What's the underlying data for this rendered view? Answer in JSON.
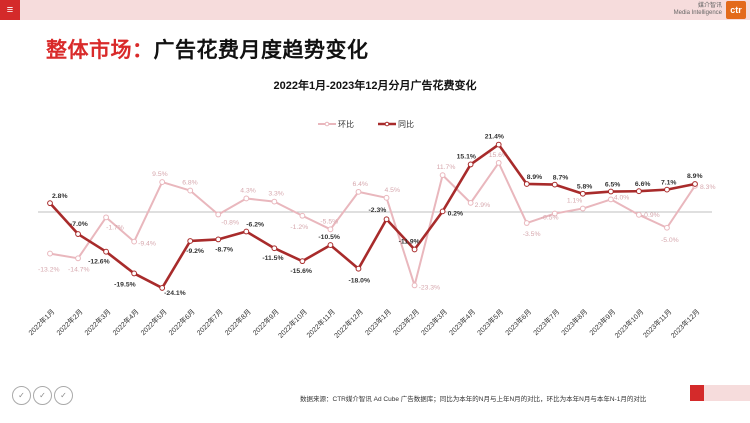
{
  "header": {
    "menu_icon": "≡",
    "brand_cn": "媒介智讯",
    "brand_en": "Media Intelligence",
    "logo_text": "ctr"
  },
  "page": {
    "title_red": "整体市场：",
    "title_black": "广告花费月度趋势变化"
  },
  "chart_data": {
    "type": "line",
    "title": "2022年1月-2023年12月分月广告花费变化",
    "xlabel": "",
    "ylabel": "",
    "legend_position": "top",
    "grid": false,
    "categories": [
      "2022年1月",
      "2022年2月",
      "2022年3月",
      "2022年4月",
      "2022年5月",
      "2022年6月",
      "2022年7月",
      "2022年8月",
      "2022年9月",
      "2022年10月",
      "2022年11月",
      "2022年12月",
      "2023年1月",
      "2023年2月",
      "2023年3月",
      "2023年4月",
      "2023年5月",
      "2023年6月",
      "2023年7月",
      "2023年8月",
      "2023年9月",
      "2023年10月",
      "2023年11月",
      "2023年12月"
    ],
    "series": [
      {
        "name": "环比",
        "color": "#e9b7bd",
        "values": [
          -13.2,
          -14.7,
          -1.7,
          -9.4,
          9.5,
          6.8,
          -0.8,
          4.3,
          3.3,
          -1.2,
          -5.5,
          6.4,
          4.5,
          -23.3,
          11.7,
          2.9,
          15.6,
          -3.5,
          -0.5,
          1.1,
          4.0,
          -0.9,
          -5.0,
          8.3
        ],
        "labels": [
          "-13.2%",
          "-14.7%",
          "-1.7%",
          "-9.4%",
          "9.5%",
          "6.8%",
          "-0.8%",
          "4.3%",
          "3.3%",
          "-1.2%",
          "-5.5%",
          "6.4%",
          "4.5%",
          "-23.3%",
          "11.7%",
          "2.9%",
          "15.6%",
          "-3.5%",
          "-0.5%",
          "1.1%",
          "4.0%",
          "-0.9%",
          "-5.0%",
          "8.3%"
        ]
      },
      {
        "name": "同比",
        "color": "#a82b2b",
        "values": [
          2.8,
          -7.0,
          -12.6,
          -19.5,
          -24.1,
          -9.2,
          -8.7,
          -6.2,
          -11.5,
          -15.6,
          -10.5,
          -18.0,
          -2.3,
          -11.9,
          0.2,
          15.1,
          21.4,
          8.9,
          8.7,
          5.8,
          6.5,
          6.6,
          7.1,
          8.9
        ],
        "labels": [
          "2.8%",
          "-7.0%",
          "-12.6%",
          "-19.5%",
          "-24.1%",
          "-9.2%",
          "-8.7%",
          "-6.2%",
          "-11.5%",
          "-15.6%",
          "-10.5%",
          "-18.0%",
          "-2.3%",
          "-11.9%",
          "0.2%",
          "15.1%",
          "21.4%",
          "8.9%",
          "8.7%",
          "5.8%",
          "6.5%",
          "6.6%",
          "7.1%",
          "8.9%"
        ]
      }
    ],
    "ylim": [
      -25,
      25
    ]
  },
  "footer": {
    "source_note": "数据来源：CTR媒介智讯 Ad Cube 广告数据库；同比为本年的N月与上年N月的对比，环比为本年N月与本年N-1月的对比",
    "cert_icons": [
      "certification-badge-icon",
      "certification-badge-icon",
      "certification-badge-icon"
    ]
  }
}
